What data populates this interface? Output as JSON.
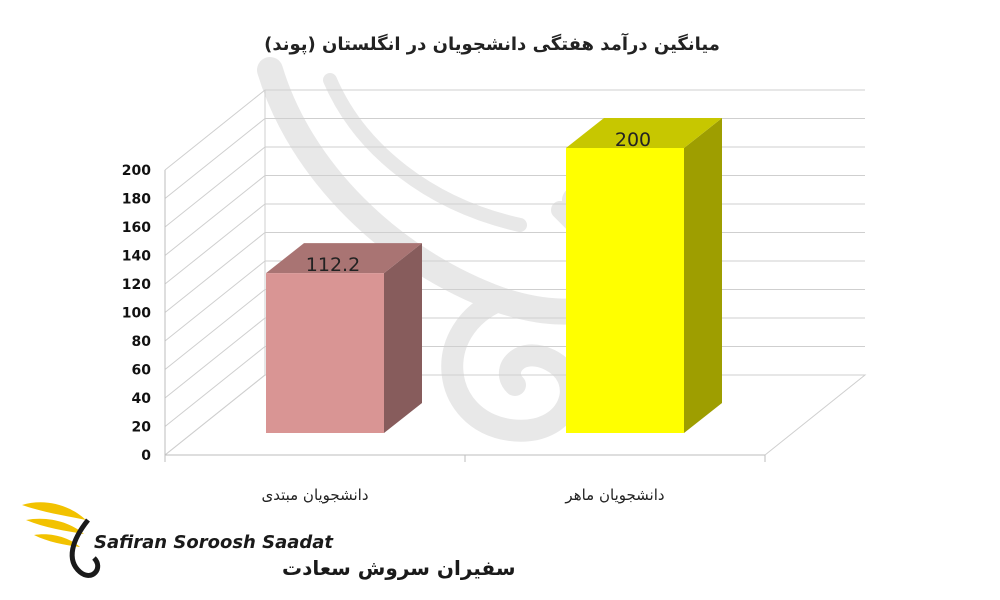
{
  "brand": {
    "name_en": "Safiran Soroosh Saadat",
    "name_fa": "سفیران سروش سعادت",
    "gold": "#f2c200",
    "watermark_color": "#e8e8e8"
  },
  "chart_data": {
    "type": "bar",
    "three_d": true,
    "title": "میانگین درآمد هفتگی دانشجویان در انگلستان (پوند)",
    "categories": [
      "دانشجویان مبتدی",
      "دانشجویان ماهر"
    ],
    "values": [
      112.2,
      200
    ],
    "data_labels": [
      "112.2",
      "200"
    ],
    "colors": [
      "#d99594",
      "#ffff00"
    ],
    "ylim": [
      0,
      200
    ],
    "ytick_step": 20,
    "yticks": [
      "0",
      "20",
      "40",
      "60",
      "80",
      "100",
      "120",
      "140",
      "160",
      "180",
      "200"
    ],
    "grid": true,
    "legend": false
  }
}
